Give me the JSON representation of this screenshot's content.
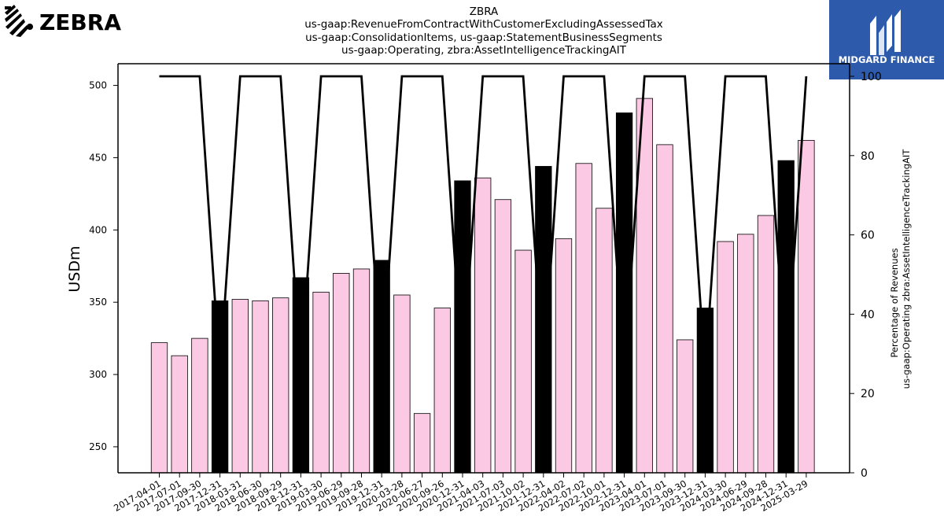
{
  "logo": {
    "company": "ZEBRA",
    "partner": "MIDGARD FINANCE"
  },
  "title": {
    "line1": "ZBRA",
    "line2": "us-gaap:RevenueFromContractWithCustomerExcludingAssessedTax",
    "line3": "us-gaap:ConsolidationItems, us-gaap:StatementBusinessSegments",
    "line4": "us-gaap:Operating, zbra:AssetIntelligenceTrackingAIT"
  },
  "chart_data": {
    "type": "bar",
    "ylabel": "USDm",
    "y2label_line1": "Percentage of Revenues",
    "y2label_line2": "us-gaap:Operating zbra:AssetIntelligenceTrackingAIT",
    "ylim": [
      232,
      515
    ],
    "y2lim": [
      0,
      100
    ],
    "yticks": [
      250,
      300,
      350,
      400,
      450,
      500
    ],
    "y2ticks": [
      0,
      20,
      40,
      60,
      80,
      100
    ],
    "grid": false,
    "colors": {
      "quarter_bar": "#fbc9e3",
      "annual_bar": "#000000",
      "line": "#000000",
      "edge": "#000000"
    },
    "categories": [
      "2017-04-01",
      "2017-07-01",
      "2017-09-30",
      "2017-12-31",
      "2018-03-31",
      "2018-06-30",
      "2018-09-29",
      "2018-12-31",
      "2019-03-30",
      "2019-06-29",
      "2019-09-28",
      "2019-12-31",
      "2020-03-28",
      "2020-06-27",
      "2020-09-26",
      "2020-12-31",
      "2021-04-03",
      "2021-07-03",
      "2021-10-02",
      "2021-12-31",
      "2022-04-02",
      "2022-07-02",
      "2022-10-01",
      "2022-12-31",
      "2023-04-01",
      "2023-07-01",
      "2023-09-30",
      "2023-12-31",
      "2024-03-30",
      "2024-06-29",
      "2024-09-28",
      "2024-12-31",
      "2025-03-29"
    ],
    "values": [
      322,
      313,
      325,
      351,
      352,
      351,
      353,
      367,
      357,
      370,
      373,
      379,
      355,
      273,
      346,
      434,
      436,
      421,
      386,
      444,
      394,
      446,
      415,
      481,
      491,
      459,
      324,
      346,
      392,
      397,
      410,
      448,
      462
    ],
    "annual": [
      false,
      false,
      false,
      true,
      false,
      false,
      false,
      true,
      false,
      false,
      false,
      true,
      false,
      false,
      false,
      true,
      false,
      false,
      false,
      true,
      false,
      false,
      false,
      true,
      false,
      false,
      false,
      true,
      false,
      false,
      false,
      true,
      false
    ],
    "pct_line": [
      100,
      100,
      100,
      25,
      100,
      100,
      100,
      25,
      100,
      100,
      100,
      25,
      100,
      100,
      100,
      25,
      100,
      100,
      100,
      25,
      100,
      100,
      100,
      25,
      100,
      100,
      100,
      25,
      100,
      100,
      100,
      25,
      100
    ]
  }
}
